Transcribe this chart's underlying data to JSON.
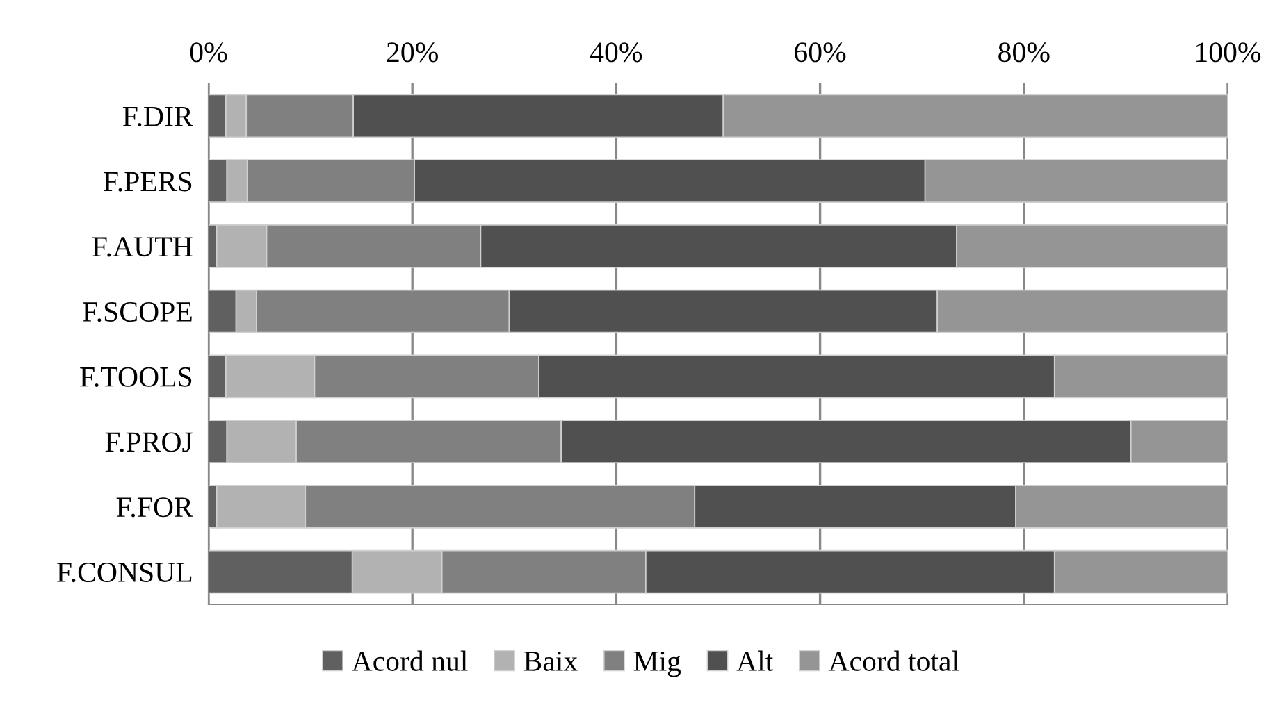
{
  "chart_data": {
    "type": "bar",
    "orientation": "horizontal",
    "stacked": true,
    "categories": [
      "F.DIR",
      "F.PERS",
      "F.AUTH",
      "F.SCOPE",
      "F.TOOLS",
      "F.PROJ",
      "F.FOR",
      "F.CONSUL"
    ],
    "series": [
      {
        "name": "Acord nul",
        "color": "#606060",
        "values": [
          1.7,
          1.8,
          0.8,
          2.7,
          1.7,
          1.8,
          0.8,
          14.1
        ]
      },
      {
        "name": "Baix",
        "color": "#b2b2b2",
        "values": [
          2.0,
          2.0,
          4.9,
          2.0,
          8.7,
          6.8,
          8.7,
          8.8
        ]
      },
      {
        "name": "Mig",
        "color": "#808080",
        "values": [
          10.5,
          16.4,
          21.0,
          24.8,
          22.0,
          26.0,
          38.2,
          20.0
        ]
      },
      {
        "name": "Alt",
        "color": "#505050",
        "values": [
          36.3,
          50.1,
          46.7,
          42.0,
          50.6,
          55.9,
          31.5,
          40.1
        ]
      },
      {
        "name": "Acord total",
        "color": "#959595",
        "values": [
          49.5,
          29.7,
          26.6,
          28.5,
          17.0,
          9.5,
          20.8,
          17.0
        ]
      }
    ],
    "xlim": [
      0,
      100
    ],
    "xticks": [
      {
        "value": 0,
        "label": "0%"
      },
      {
        "value": 20,
        "label": "20%"
      },
      {
        "value": 40,
        "label": "40%"
      },
      {
        "value": 60,
        "label": "60%"
      },
      {
        "value": 80,
        "label": "80%"
      },
      {
        "value": 100,
        "label": "100%"
      }
    ],
    "grid": "x",
    "legend": "bottom"
  }
}
